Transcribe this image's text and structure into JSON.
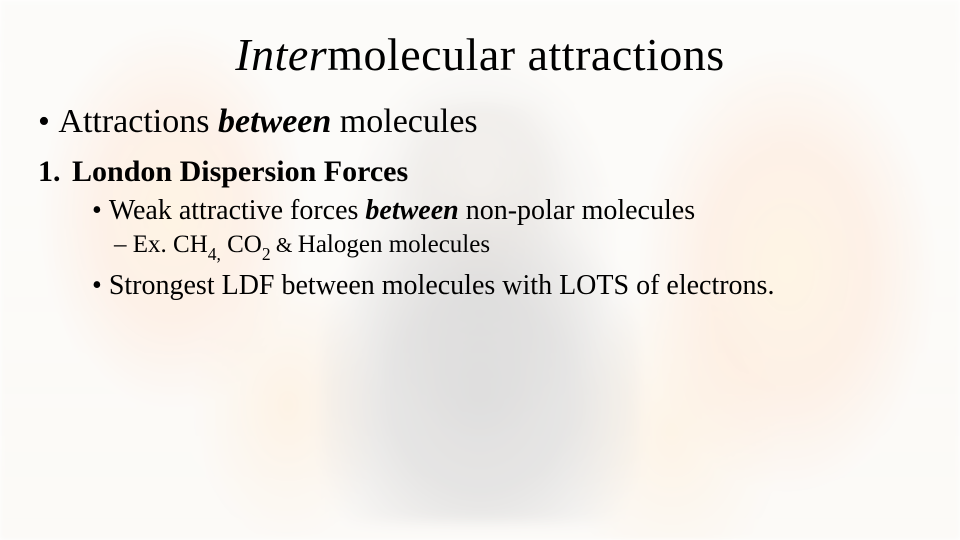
{
  "title": {
    "prefix": "Inter",
    "rest": "molecular attractions"
  },
  "bullet1": {
    "pre": "Attractions ",
    "em": "between",
    "post": " molecules"
  },
  "num1": {
    "marker": "1.",
    "text": "London Dispersion Forces"
  },
  "bullet2": {
    "pre": "Weak attractive forces ",
    "em": "between",
    "post": " non-polar molecules"
  },
  "dash": {
    "lead": "– Ex.  CH",
    "sub1": "4,",
    "mid": "  CO",
    "sub2": "2",
    "amp": "  & ",
    "tail": "Halogen molecules"
  },
  "bullet3": "Strongest LDF between molecules with LOTS of electrons."
}
